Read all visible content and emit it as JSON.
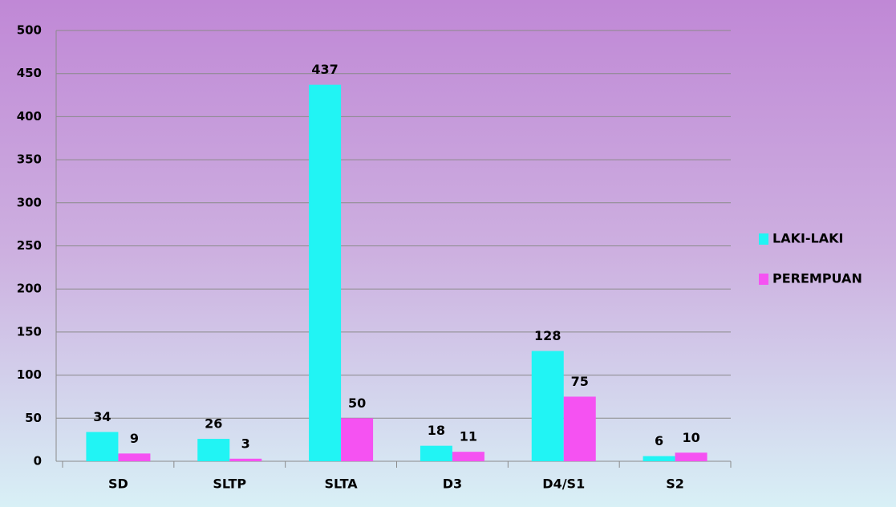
{
  "chart_data": {
    "type": "bar",
    "categories": [
      "SD",
      "SLTP",
      "SLTA",
      "D3",
      "D4/S1",
      "S2"
    ],
    "series": [
      {
        "name": "LAKI-LAKI",
        "color": "#21f4f4",
        "values": [
          34,
          26,
          437,
          18,
          128,
          6
        ]
      },
      {
        "name": "PEREMPUAN",
        "color": "#f552f2",
        "values": [
          9,
          3,
          50,
          11,
          75,
          10
        ]
      }
    ],
    "ylim": [
      0,
      500
    ],
    "yticks": [
      0,
      50,
      100,
      150,
      200,
      250,
      300,
      350,
      400,
      450,
      500
    ],
    "grid": true,
    "legend": "right"
  }
}
